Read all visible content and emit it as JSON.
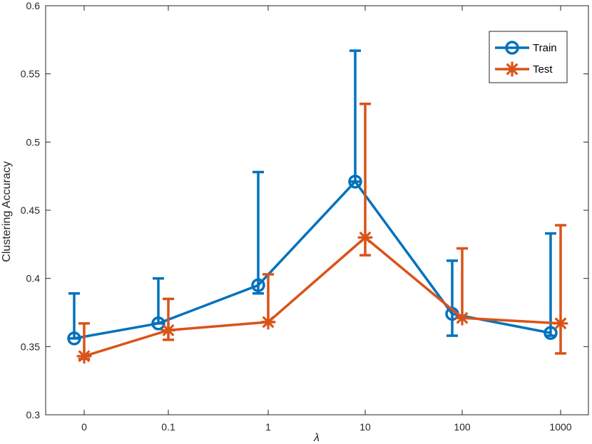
{
  "chart_data": {
    "type": "line",
    "categories": [
      "0",
      "0.1",
      "1",
      "10",
      "100",
      "1000"
    ],
    "xlabel": "λ",
    "ylabel": "Clustering Accuracy",
    "ylim": [
      0.3,
      0.6
    ],
    "yticks": [
      "0.3",
      "0.35",
      "0.4",
      "0.45",
      "0.5",
      "0.55",
      "0.6"
    ],
    "grid": false,
    "legend_position": "top-right",
    "series": [
      {
        "name": "Train",
        "color": "#0072BD",
        "marker": "circle",
        "values": [
          0.356,
          0.367,
          0.395,
          0.471,
          0.374,
          0.36
        ],
        "err_low": [
          0.356,
          0.367,
          0.389,
          0.471,
          0.358,
          0.358
        ],
        "err_high": [
          0.389,
          0.4,
          0.478,
          0.567,
          0.413,
          0.433
        ]
      },
      {
        "name": "Test",
        "color": "#D95319",
        "marker": "asterisk",
        "values": [
          0.343,
          0.362,
          0.368,
          0.43,
          0.371,
          0.367
        ],
        "err_low": [
          0.341,
          0.355,
          0.368,
          0.417,
          0.371,
          0.345
        ],
        "err_high": [
          0.367,
          0.385,
          0.403,
          0.528,
          0.422,
          0.439
        ]
      }
    ]
  }
}
